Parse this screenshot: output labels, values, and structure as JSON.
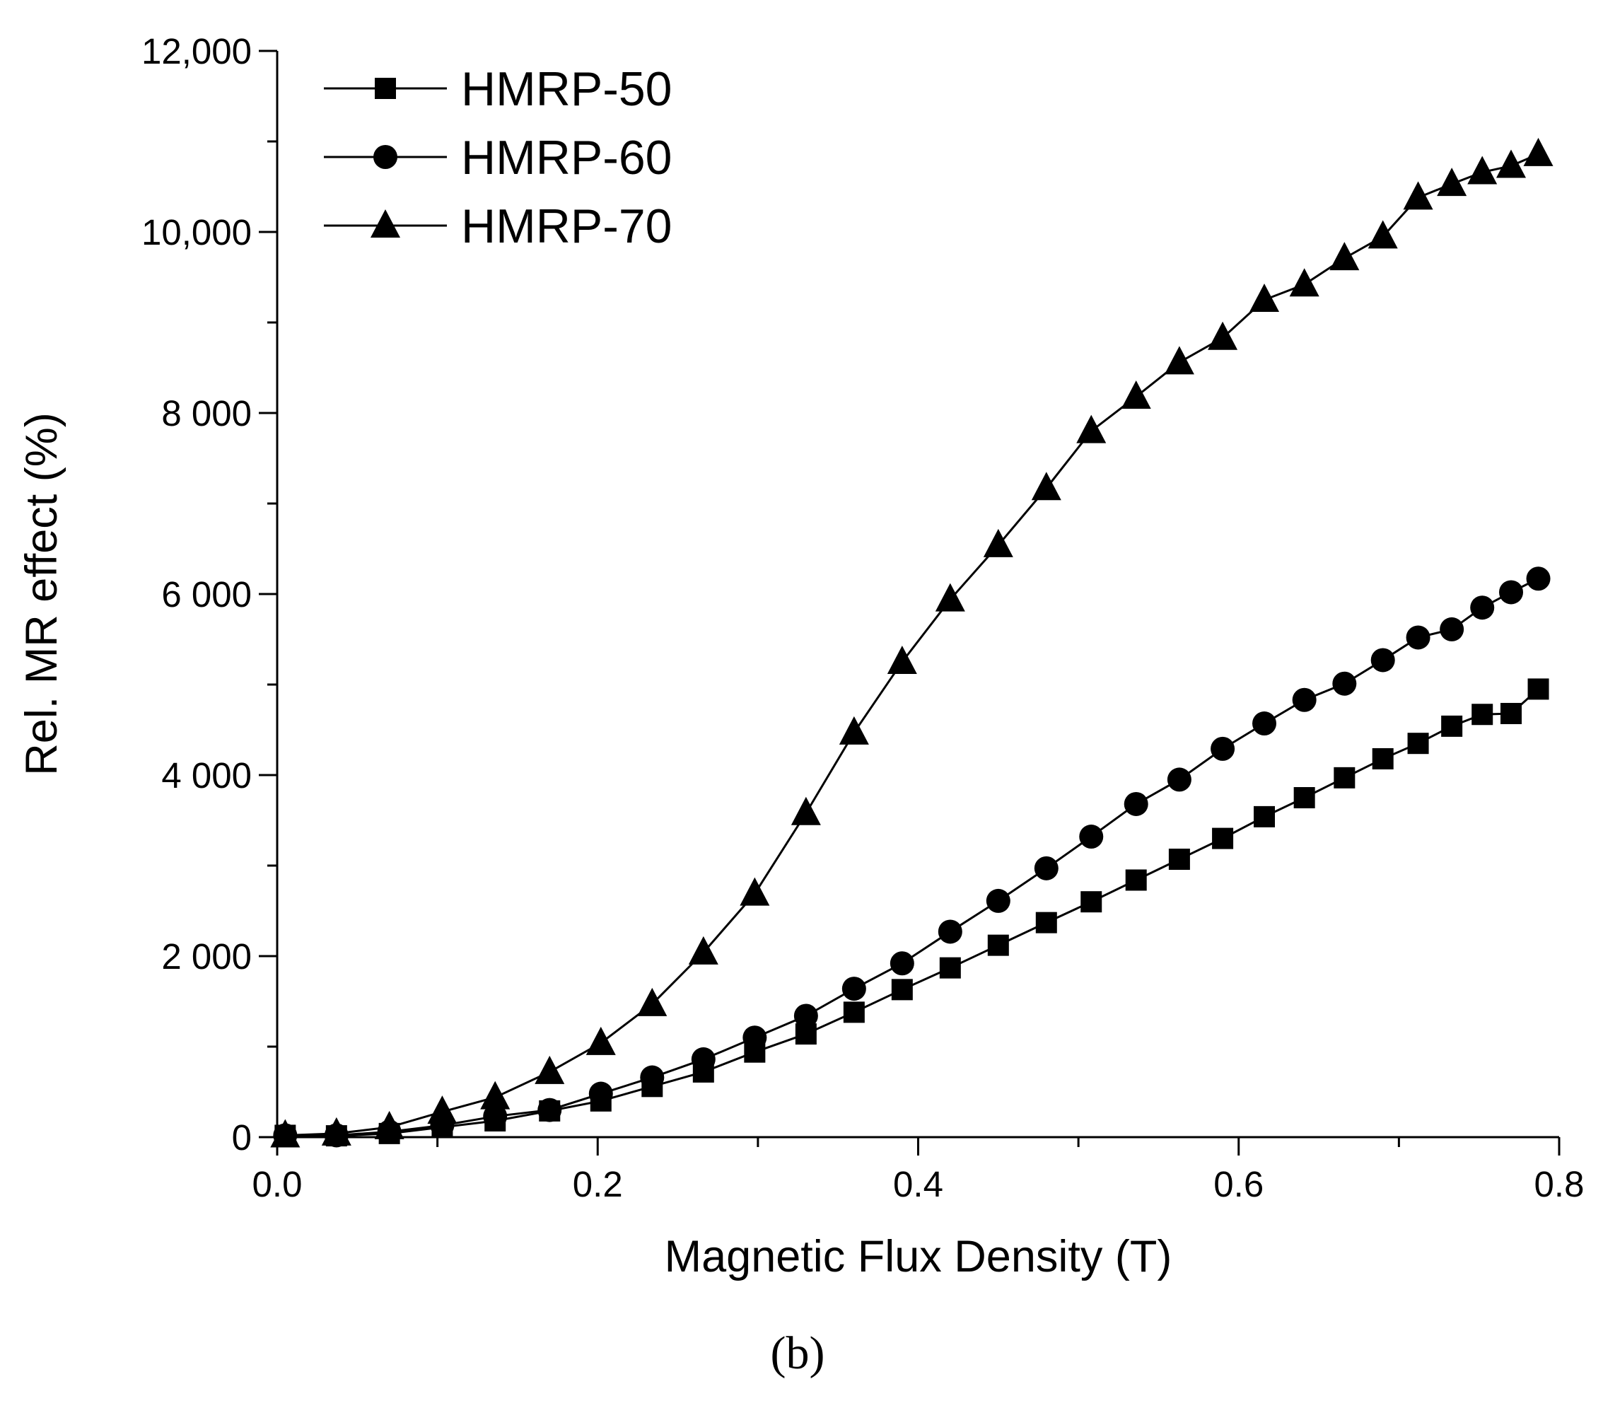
{
  "chart_data": {
    "type": "line",
    "xlabel": "Magnetic Flux Density (T)",
    "ylabel": "Rel. MR effect (%)",
    "panel_label": "(b)",
    "xlim": [
      0,
      0.8
    ],
    "ylim": [
      0,
      12000
    ],
    "x_ticks": [
      0,
      0.2,
      0.4,
      0.6,
      0.8
    ],
    "x_tick_labels": [
      "0.0",
      "0.2",
      "0.4",
      "0.6",
      "0.8"
    ],
    "y_ticks": [
      0,
      2000,
      4000,
      6000,
      8000,
      10000,
      12000
    ],
    "y_tick_labels": [
      "0",
      "2 000",
      "4 000",
      "6 000",
      "8 000",
      "10,000",
      "12,000"
    ],
    "legend_position": "top-left",
    "grid": false,
    "line_color": "#000000",
    "series": [
      {
        "name": "HMRP-50",
        "marker": "square",
        "x": [
          0.005,
          0.037,
          0.07,
          0.103,
          0.136,
          0.17,
          0.202,
          0.234,
          0.266,
          0.298,
          0.33,
          0.36,
          0.39,
          0.42,
          0.45,
          0.48,
          0.508,
          0.536,
          0.563,
          0.59,
          0.616,
          0.641,
          0.666,
          0.69,
          0.712,
          0.733,
          0.752,
          0.77,
          0.787
        ],
        "y": [
          20,
          15,
          40,
          110,
          180,
          290,
          400,
          560,
          720,
          940,
          1140,
          1380,
          1630,
          1870,
          2120,
          2370,
          2600,
          2840,
          3070,
          3300,
          3540,
          3750,
          3970,
          4180,
          4350,
          4540,
          4670,
          4680,
          4950
        ]
      },
      {
        "name": "HMRP-60",
        "marker": "circle",
        "x": [
          0.005,
          0.037,
          0.07,
          0.103,
          0.136,
          0.17,
          0.202,
          0.234,
          0.266,
          0.298,
          0.33,
          0.36,
          0.39,
          0.42,
          0.45,
          0.48,
          0.508,
          0.536,
          0.563,
          0.59,
          0.616,
          0.641,
          0.666,
          0.69,
          0.712,
          0.733,
          0.752,
          0.77,
          0.787
        ],
        "y": [
          20,
          20,
          60,
          130,
          230,
          300,
          480,
          660,
          860,
          1100,
          1340,
          1640,
          1920,
          2270,
          2610,
          2970,
          3320,
          3680,
          3950,
          4290,
          4570,
          4830,
          5010,
          5270,
          5520,
          5610,
          5850,
          6020,
          6170
        ]
      },
      {
        "name": "HMRP-70",
        "marker": "triangle",
        "x": [
          0.005,
          0.037,
          0.07,
          0.103,
          0.136,
          0.17,
          0.202,
          0.234,
          0.266,
          0.298,
          0.33,
          0.36,
          0.39,
          0.42,
          0.45,
          0.48,
          0.508,
          0.536,
          0.563,
          0.59,
          0.616,
          0.641,
          0.666,
          0.69,
          0.712,
          0.733,
          0.752,
          0.77,
          0.787
        ],
        "y": [
          20,
          40,
          110,
          280,
          440,
          720,
          1040,
          1470,
          2040,
          2690,
          3580,
          4470,
          5250,
          5940,
          6540,
          7170,
          7800,
          8180,
          8560,
          8830,
          9250,
          9420,
          9710,
          9950,
          10380,
          10530,
          10660,
          10730,
          10860
        ]
      }
    ]
  }
}
